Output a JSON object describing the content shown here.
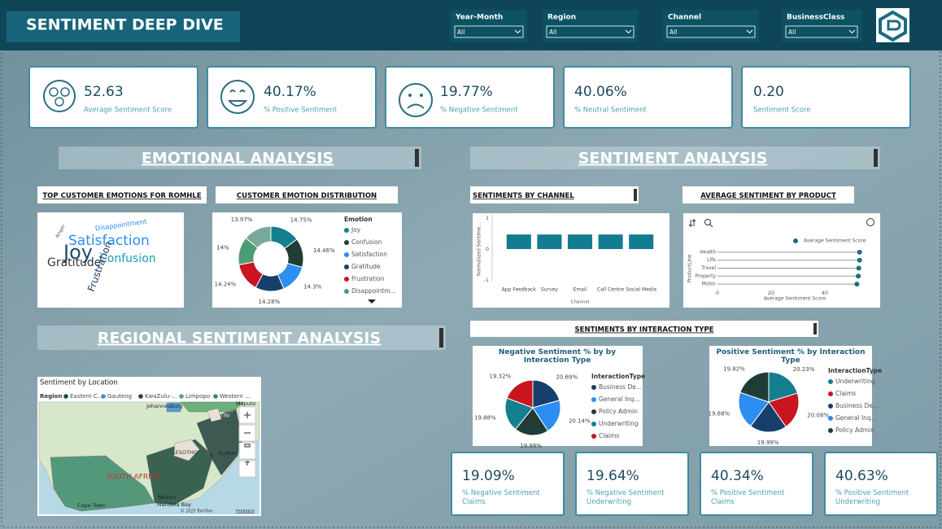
{
  "header": {
    "title": "SENTIMENT DEEP DIVE",
    "filters": [
      {
        "label": "Year-Month",
        "value": "All"
      },
      {
        "label": "Region",
        "value": "All"
      },
      {
        "label": "Channel",
        "value": "All"
      },
      {
        "label": "BusinessClass",
        "value": "All"
      }
    ]
  },
  "kpis": [
    {
      "value": "52.63",
      "label": "Average Sentiment Score"
    },
    {
      "value": "40.17%",
      "label": "% Positive Sentiment"
    },
    {
      "value": "19.77%",
      "label": "% Negative Sentiment"
    },
    {
      "value": "40.06%",
      "label": "% Neutral Sentiment"
    },
    {
      "value": "0.20",
      "label": "Sentiment Score"
    }
  ],
  "sections": [
    "EMOTIONAL ANALYSIS",
    "SENTIMENT ANALYSIS",
    "REGIONAL SENTIMENT ANALYSIS"
  ],
  "panels": [
    "TOP CUSTOMER EMOTIONS FOR ROMHLE",
    "CUSTOMER EMOTION DISTRIBUTION",
    "SENTIMENTS BY CHANNEL",
    "AVERAGE SENTIMENT BY PRODUCT",
    "SENTIMENTS BY INTERACTION TYPE"
  ],
  "word_cloud": {
    "words": [
      "Disappointment",
      "Anger",
      "Satisfaction",
      "Joy",
      "Confusion",
      "Gratitude",
      "Frustration"
    ]
  },
  "map": {
    "title": "Sentiment by Location",
    "legend_title": "Region",
    "regions": [
      {
        "name": "Eastern C...",
        "color": "#1f4a3c"
      },
      {
        "name": "Gauteng",
        "color": "#3a8fd6"
      },
      {
        "name": "KwaZulu-...",
        "color": "#23403c"
      },
      {
        "name": "Limpopo",
        "color": "#5aa36b"
      },
      {
        "name": "Western ...",
        "color": "#3d8a6e"
      }
    ],
    "labels": [
      "Johannesburg",
      "Maputo",
      "ESWATINI",
      "LESOTHO",
      "Durban",
      "SOUTH AFRICA",
      "Nelson",
      "Mandela Bay",
      "Cape Town"
    ],
    "attribution": [
      "© 2025 TomTom",
      "Feedback"
    ]
  },
  "bottom_kpis": [
    {
      "value": "19.09%",
      "label": "% Negative Sentiment Claims"
    },
    {
      "value": "19.64%",
      "label": "% Negative Sentiment Underwriting"
    },
    {
      "value": "40.34%",
      "label": "% Positive Sentiment Claims"
    },
    {
      "value": "40.63%",
      "label": "% Positive Sentiment Underwriting"
    }
  ],
  "chart_data": [
    {
      "type": "donut",
      "legend_title": "Emotion",
      "categories": [
        "Joy",
        "Confusion",
        "Satisfaction",
        "Gratitude",
        "Frustration",
        "Disappointm...",
        null
      ],
      "values": [
        14.75,
        14.46,
        14.3,
        14.28,
        14.24,
        14,
        13.97
      ],
      "value_labels": [
        "14.75%",
        "14.46%",
        "14.3%",
        "14.28%",
        "14.24%",
        "14%",
        "13.97%"
      ],
      "colors": [
        "#13808f",
        "#1f3d36",
        "#2b8ef0",
        "#173f6c",
        "#c8151f",
        "#4e9c75",
        "#78a89a"
      ]
    },
    {
      "type": "bar",
      "categories": [
        "App Feedback",
        "Survey",
        "Email",
        "Call Centre",
        "Social Media"
      ],
      "values": [
        0.47,
        0.47,
        0.47,
        0.47,
        0.47
      ],
      "color": "#137c91",
      "ylim": [
        -1,
        1
      ],
      "yticks": [
        -1,
        0,
        1
      ],
      "y_label": "Normalized Sentime...",
      "x_label": "Channel"
    },
    {
      "type": "dot",
      "categories": [
        "Health",
        "Life",
        "Travel",
        "Property",
        "Motor"
      ],
      "series": [
        {
          "name": "Average Sentiment Score",
          "color": "#1a6e82",
          "values": [
            53,
            53,
            52.7,
            52.5,
            52
          ]
        }
      ],
      "xlim": [
        0,
        54
      ],
      "xticks": [
        0,
        20,
        40
      ],
      "x_label": "Average Sentiment Score",
      "y_label": "ProductLine"
    },
    {
      "type": "pie",
      "title": "Negative Sentiment % by by Interaction Type",
      "legend_title": "InteractionType",
      "categories": [
        "Business De...",
        "General Inq...",
        "Policy Admin",
        "Underwriting",
        "Claims"
      ],
      "values": [
        20.69,
        20.14,
        19.98,
        19.88,
        19.32
      ],
      "value_labels": [
        "20.69%",
        "20.14%",
        "19.98%",
        "19.88%",
        "19.32%"
      ],
      "colors": [
        "#173f6c",
        "#2b8ef0",
        "#1f3d36",
        "#13808f",
        "#c8151f"
      ]
    },
    {
      "type": "pie",
      "title": "Positive Sentiment % by Interaction Type",
      "legend_title": "InteractionType",
      "categories": [
        "Underwriting",
        "Claims",
        "Business De...",
        "General Inq...",
        "Policy Admin"
      ],
      "values": [
        20.23,
        20.08,
        19.99,
        19.88,
        19.82
      ],
      "value_labels": [
        "20.23%",
        "20.08%",
        "19.99%",
        "19.88%",
        "19.82%"
      ],
      "colors": [
        "#13808f",
        "#c8151f",
        "#173f6c",
        "#2b8ef0",
        "#1f3d36"
      ]
    }
  ]
}
